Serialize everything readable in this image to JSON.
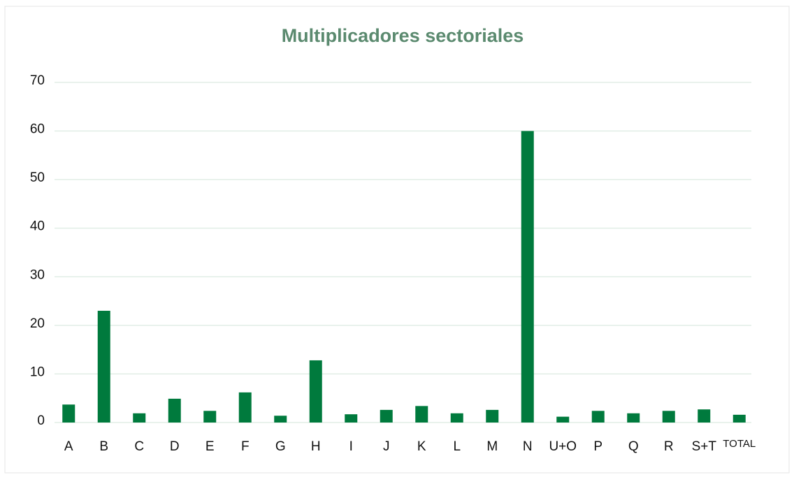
{
  "chart_data": {
    "type": "bar",
    "title": "Multiplicadores sectoriales",
    "categories": [
      "A",
      "B",
      "C",
      "D",
      "E",
      "F",
      "G",
      "H",
      "I",
      "J",
      "K",
      "L",
      "M",
      "N",
      "U+O",
      "P",
      "Q",
      "R",
      "S+T",
      "TOTAL"
    ],
    "values": [
      3.7,
      23,
      1.9,
      4.9,
      2.4,
      6.2,
      1.4,
      12.8,
      1.7,
      2.6,
      3.4,
      1.9,
      2.6,
      60,
      1.2,
      2.4,
      1.9,
      2.4,
      2.7,
      1.6
    ],
    "color": "#007a3d",
    "ylim": [
      0,
      70
    ],
    "yticks": [
      0,
      10,
      20,
      30,
      40,
      50,
      60,
      70
    ],
    "grid": true
  }
}
